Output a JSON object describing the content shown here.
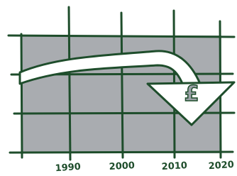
{
  "x_axis": {
    "labels": [
      "1990",
      "2000",
      "2010",
      "2020"
    ]
  },
  "arrow": {
    "symbol": "£"
  }
}
